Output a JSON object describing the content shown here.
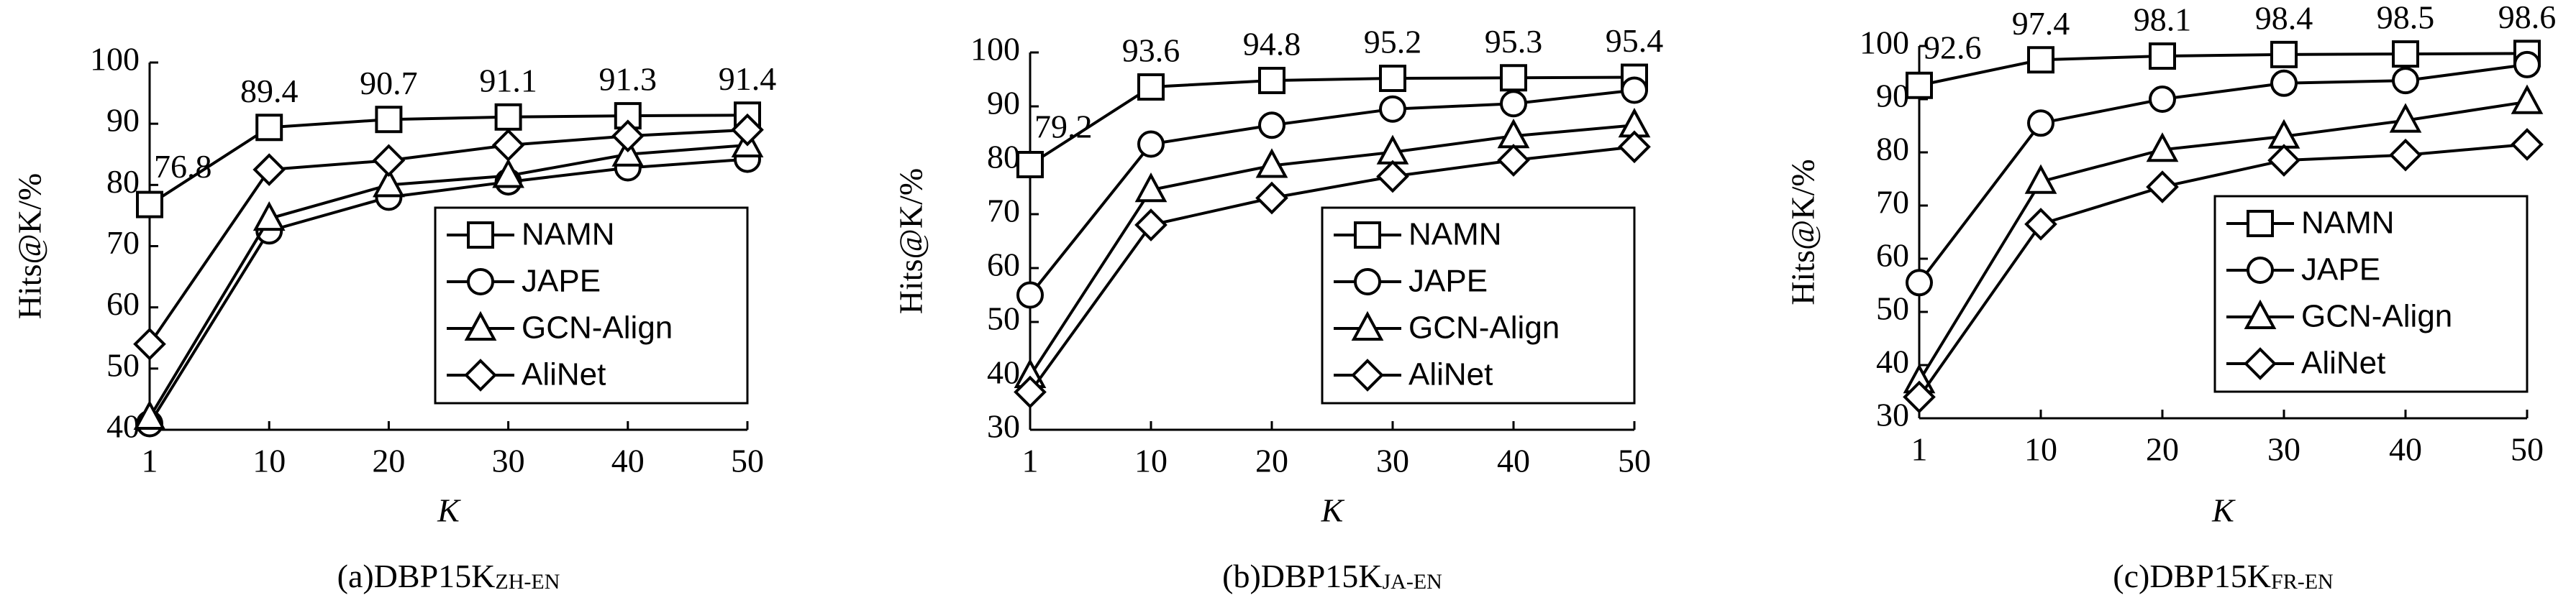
{
  "chart_data": [
    {
      "type": "line",
      "ylabel": "Hits@K/%",
      "xlabel": "K",
      "caption": "(a)DBP15K",
      "caption_sub": "ZH-EN",
      "categories": [
        "1",
        "10",
        "20",
        "30",
        "40",
        "50"
      ],
      "ylim": [
        40,
        100
      ],
      "yticks": [
        40,
        50,
        60,
        70,
        80,
        90,
        100
      ],
      "legend": "lower right",
      "series": [
        {
          "name": "NAMN",
          "marker": "square",
          "color": "#000000",
          "data_labels": true,
          "values": [
            76.8,
            89.4,
            90.7,
            91.1,
            91.3,
            91.4
          ]
        },
        {
          "name": "JAPE",
          "marker": "circle",
          "color": "#000000",
          "values": [
            41,
            72.5,
            78,
            80.5,
            82.8,
            84.2
          ]
        },
        {
          "name": "GCN-Align",
          "marker": "triangle",
          "color": "#000000",
          "values": [
            42,
            74.5,
            80,
            81.5,
            85,
            86.5
          ]
        },
        {
          "name": "AliNet",
          "marker": "diamond",
          "color": "#000000",
          "values": [
            54,
            82.5,
            84,
            86.5,
            88,
            89
          ]
        }
      ]
    },
    {
      "type": "line",
      "ylabel": "Hits@K/%",
      "xlabel": "K",
      "caption": "(b)DBP15K",
      "caption_sub": "JA-EN",
      "categories": [
        "1",
        "10",
        "20",
        "30",
        "40",
        "50"
      ],
      "ylim": [
        30,
        100
      ],
      "yticks": [
        30,
        40,
        50,
        60,
        70,
        80,
        90,
        100
      ],
      "legend": "lower right",
      "series": [
        {
          "name": "NAMN",
          "marker": "square",
          "color": "#000000",
          "data_labels": true,
          "values": [
            79.2,
            93.6,
            94.8,
            95.2,
            95.3,
            95.4
          ]
        },
        {
          "name": "JAPE",
          "marker": "circle",
          "color": "#000000",
          "values": [
            55,
            83,
            86.5,
            89.5,
            90.5,
            93
          ]
        },
        {
          "name": "GCN-Align",
          "marker": "triangle",
          "color": "#000000",
          "values": [
            40,
            74.5,
            79,
            81.5,
            84.5,
            86.5
          ]
        },
        {
          "name": "AliNet",
          "marker": "diamond",
          "color": "#000000",
          "values": [
            37,
            68,
            73,
            77,
            80,
            82.5
          ]
        }
      ]
    },
    {
      "type": "line",
      "ylabel": "Hits@K/%",
      "xlabel": "K",
      "caption": "(c)DBP15K",
      "caption_sub": "FR-EN",
      "categories": [
        "1",
        "10",
        "20",
        "30",
        "40",
        "50"
      ],
      "ylim": [
        30,
        100
      ],
      "yticks": [
        30,
        40,
        50,
        60,
        70,
        80,
        90,
        100
      ],
      "legend": "lower right",
      "series": [
        {
          "name": "NAMN",
          "marker": "square",
          "color": "#000000",
          "data_labels": true,
          "values": [
            92.6,
            97.4,
            98.1,
            98.4,
            98.5,
            98.6
          ]
        },
        {
          "name": "JAPE",
          "marker": "circle",
          "color": "#000000",
          "values": [
            55.5,
            85.5,
            90,
            93,
            93.5,
            96.5
          ]
        },
        {
          "name": "GCN-Align",
          "marker": "triangle",
          "color": "#000000",
          "values": [
            37,
            74.5,
            80.5,
            83,
            86,
            89.5
          ]
        },
        {
          "name": "AliNet",
          "marker": "diamond",
          "color": "#000000",
          "values": [
            34,
            66.5,
            73.5,
            78.5,
            79.5,
            81.5
          ]
        }
      ]
    }
  ]
}
